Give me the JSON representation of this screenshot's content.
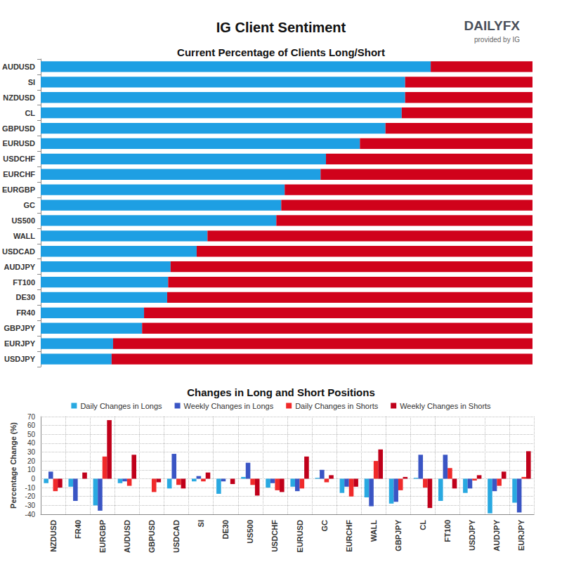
{
  "header": {
    "title": "IG Client Sentiment",
    "brand": "DAILYFX",
    "brand_note": "provided by IG"
  },
  "chart_data": [
    {
      "type": "bar",
      "title": "Current Percentage of Clients Long/Short",
      "orientation": "horizontal",
      "stacked": true,
      "tick_labels": "y",
      "categories": [
        "AUDUSD",
        "SI",
        "NZDUSD",
        "CL",
        "GBPUSD",
        "EURUSD",
        "USDCHF",
        "EURCHF",
        "EURGBP",
        "GC",
        "US500",
        "WALL",
        "USDCAD",
        "AUDJPY",
        "FT100",
        "DE30",
        "FR40",
        "GBPJPY",
        "EURJPY",
        "USDJPY"
      ],
      "xlim": [
        0,
        100
      ],
      "series": [
        {
          "color": "#1e9fe3",
          "values": [
            79.3,
            74.1,
            74.1,
            73.4,
            70.1,
            64.9,
            58.0,
            56.9,
            49.6,
            48.9,
            47.9,
            33.9,
            31.7,
            26.4,
            25.9,
            25.7,
            21.0,
            20.6,
            14.7,
            14.4
          ]
        },
        {
          "color": "#d0021b",
          "values": [
            20.7,
            25.9,
            25.9,
            26.6,
            29.9,
            35.1,
            42.0,
            43.1,
            50.4,
            51.1,
            52.1,
            66.1,
            68.3,
            73.6,
            74.1,
            74.3,
            79.0,
            79.4,
            85.3,
            85.6
          ]
        }
      ]
    },
    {
      "type": "bar",
      "title": "Changes in Long and Short Positions",
      "ylabel": "Percentage Change (%)",
      "grid": true,
      "legend": "top",
      "categories": [
        "NZDUSD",
        "FR40",
        "EURGBP",
        "AUDUSD",
        "GBPUSD",
        "USDCAD",
        "SI",
        "DE30",
        "US500",
        "USDCHF",
        "EURUSD",
        "GC",
        "EURCHF",
        "WALL",
        "GBPJPY",
        "CL",
        "FT100",
        "USDJPY",
        "AUDJPY",
        "EURJPY"
      ],
      "ylim": [
        -40,
        70
      ],
      "yticks": [
        -40,
        -30,
        -20,
        -10,
        0,
        10,
        20,
        30,
        40,
        50,
        60,
        70
      ],
      "series": [
        {
          "name": "Daily Changes in Longs",
          "color": "#29a9e1",
          "values": [
            -5,
            -9,
            -30,
            -5,
            0,
            -11,
            -3,
            -17,
            2,
            -10,
            -9,
            1,
            -16,
            -21,
            -28,
            1,
            -25,
            -16,
            -39,
            -27
          ]
        },
        {
          "name": "Weekly Changes in Longs",
          "color": "#3a55c4",
          "values": [
            8,
            -25,
            -36,
            -3,
            0,
            28,
            3,
            -3,
            18,
            -5,
            -14,
            10,
            -9,
            -31,
            -26,
            27,
            27,
            -11,
            -14,
            -38
          ]
        },
        {
          "name": "Daily Changes in Shorts",
          "color": "#f02a2a",
          "values": [
            -14,
            0,
            25,
            -8,
            -15,
            -7,
            -3,
            0,
            -7,
            -13,
            -11,
            -4,
            -20,
            20,
            -13,
            -10,
            12,
            -2,
            -8,
            2
          ]
        },
        {
          "name": "Weekly Changes in Shorts",
          "color": "#c0001a",
          "values": [
            -10,
            7,
            66,
            27,
            -4,
            -11,
            7,
            -6,
            -19,
            -15,
            25,
            4,
            -9,
            33,
            2,
            -33,
            -11,
            4,
            8,
            31
          ]
        }
      ]
    }
  ]
}
